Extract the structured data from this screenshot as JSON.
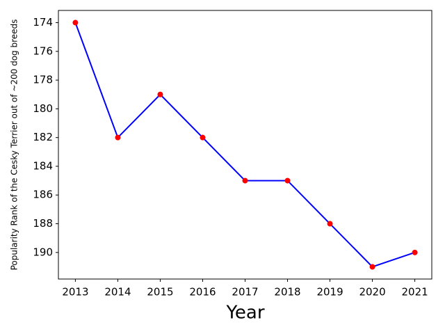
{
  "chart_data": {
    "type": "line",
    "x_label": "Year",
    "y_label": "Popularity Rank of the Cesky Terrier out of ~200 dog breeds",
    "x": [
      2013,
      2014,
      2015,
      2016,
      2017,
      2018,
      2019,
      2020,
      2021
    ],
    "series": [
      {
        "color": "#0000ff",
        "marker_color": "#ff0000",
        "values": [
          174,
          182,
          179,
          182,
          185,
          185,
          188,
          191,
          190
        ]
      }
    ],
    "xlim": [
      2012.6,
      2021.4
    ],
    "xticks": [
      2013,
      2014,
      2015,
      2016,
      2017,
      2018,
      2019,
      2020,
      2021
    ],
    "ylim": [
      173.15,
      191.85
    ],
    "yticks": [
      174,
      176,
      178,
      180,
      182,
      184,
      186,
      188,
      190
    ],
    "y_inverted": true,
    "grid": false
  }
}
